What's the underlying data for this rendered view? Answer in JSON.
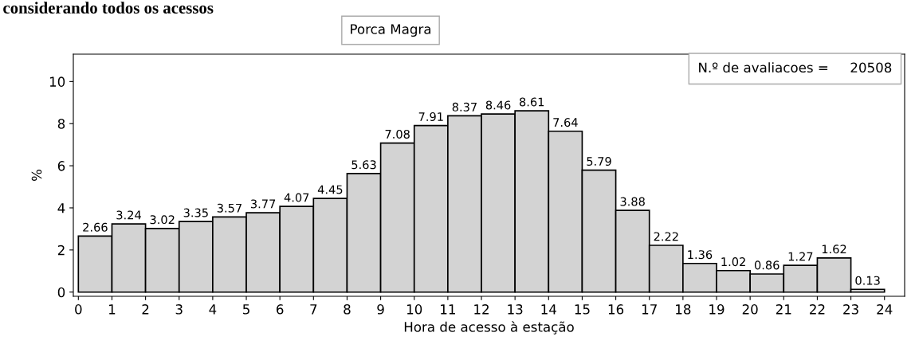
{
  "chart_data": {
    "type": "histogram",
    "title": "considerando todos os acessos",
    "subtitle": "Porca Magra",
    "xlabel": "Hora de acesso à estação",
    "ylabel": "%",
    "annotations": [
      "N.º de avaliacoes =     20508"
    ],
    "bins": [
      0,
      1,
      2,
      3,
      4,
      5,
      6,
      7,
      8,
      9,
      10,
      11,
      12,
      13,
      14,
      15,
      16,
      17,
      18,
      19,
      20,
      21,
      22,
      23,
      24
    ],
    "values": [
      2.66,
      3.24,
      3.02,
      3.35,
      3.57,
      3.77,
      4.07,
      4.45,
      5.63,
      7.08,
      7.91,
      8.37,
      8.46,
      8.61,
      7.64,
      5.79,
      3.88,
      2.22,
      1.36,
      1.02,
      0.86,
      1.27,
      1.62,
      0.13
    ],
    "color": "#d3d3d3",
    "data_labels": true,
    "xlim": [
      -0.15,
      24.6
    ],
    "xticks": [
      0,
      1,
      2,
      3,
      4,
      5,
      6,
      7,
      8,
      9,
      10,
      11,
      12,
      13,
      14,
      15,
      16,
      17,
      18,
      19,
      20,
      21,
      22,
      23,
      24
    ],
    "ylim": [
      -0.2,
      11.3
    ],
    "yticks": [
      0,
      2,
      4,
      6,
      8,
      10
    ],
    "grid": false,
    "legend": false
  }
}
